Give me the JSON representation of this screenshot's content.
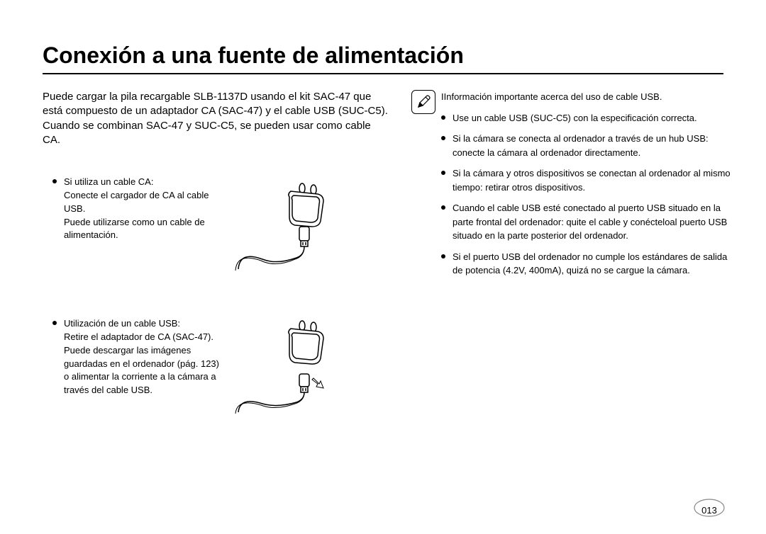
{
  "title": "Conexión a una fuente de alimentación",
  "intro": "Puede cargar la pila recargable SLB-1137D usando el kit SAC-47 que está compuesto de un adaptador CA (SAC-47) y el cable USB (SUC-C5).\nCuando se combinan SAC-47 y SUC-C5, se pueden usar como cable CA.",
  "items": [
    {
      "label": "Si utiliza un cable CA:",
      "body": "Conecte el cargador de CA al cable USB.\nPuede utilizarse como un cable de alimentación."
    },
    {
      "label": "Utilización de un cable USB:",
      "body": "Retire el adaptador de CA (SAC-47). Puede descargar las imágenes guardadas en el ordenador (pág. 123) o alimentar la corriente a la cámara a través del cable USB."
    }
  ],
  "note_heading": "IInformación importante acerca del uso de cable USB.",
  "note_items": [
    "Use un cable USB (SUC-C5) con la especificación correcta.",
    "Si la cámara se conecta al ordenador a través de un hub USB: conecte la cámara al ordenador directamente.",
    "Si la cámara y otros dispositivos se conectan al ordenador al mismo tiempo: retirar otros dispositivos.",
    "Cuando el cable USB esté conectado al puerto USB situado en la parte frontal del ordenador: quite el cable y conécteloal puerto USB situado en la parte posterior del ordenador.",
    "Si el puerto USB del ordenador no cumple los estándares de salida de potencia (4.2V, 400mA), quizá no se cargue la cámara."
  ],
  "page_number": "013"
}
